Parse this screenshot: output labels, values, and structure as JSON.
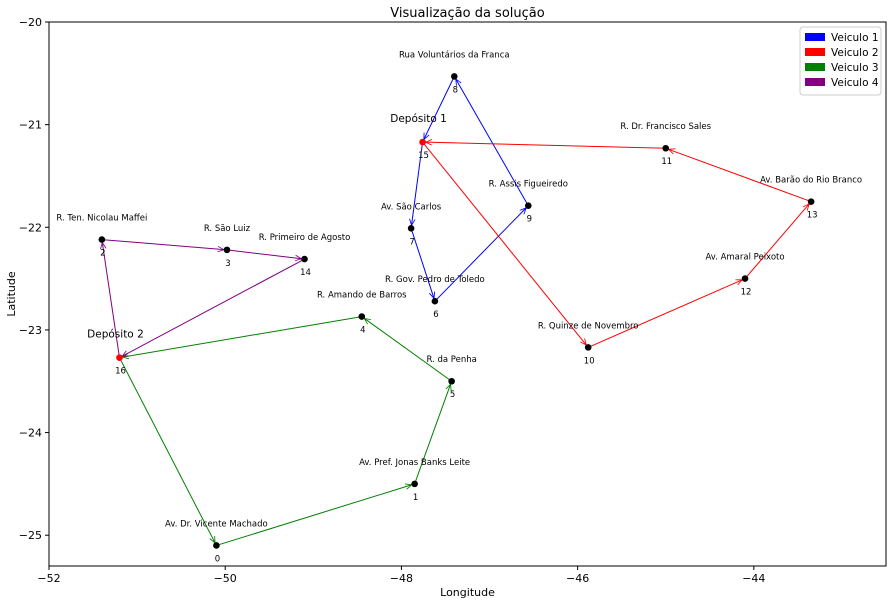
{
  "chart_data": {
    "type": "scatter",
    "title": "Visualização da solução",
    "xlabel": "Longitude",
    "ylabel": "Latitude",
    "xlim": [
      -52,
      -42.5
    ],
    "ylim": [
      -25.3,
      -20
    ],
    "xticks": [
      -52,
      -50,
      -48,
      -46,
      -44
    ],
    "yticks": [
      -20,
      -21,
      -22,
      -23,
      -24,
      -25
    ],
    "xtick_labels": [
      "−52",
      "−50",
      "−48",
      "−46",
      "−44"
    ],
    "ytick_labels": [
      "−20",
      "−21",
      "−22",
      "−23",
      "−24",
      "−25"
    ],
    "grid": false,
    "legend_position": "top-right",
    "nodes": [
      {
        "id": "0",
        "label": "Av. Dr. Vicente Machado",
        "x": -50.1,
        "y": -25.1,
        "depot": false
      },
      {
        "id": "1",
        "label": "Av. Pref. Jonas Banks Leite",
        "x": -47.85,
        "y": -24.5,
        "depot": false
      },
      {
        "id": "2",
        "label": "R. Ten. Nicolau Maffei",
        "x": -51.4,
        "y": -22.12,
        "depot": false
      },
      {
        "id": "3",
        "label": "R. São Luiz",
        "x": -49.98,
        "y": -22.22,
        "depot": false
      },
      {
        "id": "4",
        "label": "R. Amando de Barros",
        "x": -48.45,
        "y": -22.87,
        "depot": false
      },
      {
        "id": "5",
        "label": "R. da Penha",
        "x": -47.43,
        "y": -23.5,
        "depot": false
      },
      {
        "id": "6",
        "label": "R. Gov. Pedro de Toledo",
        "x": -47.62,
        "y": -22.72,
        "depot": false
      },
      {
        "id": "7",
        "label": "Av. São Carlos",
        "x": -47.89,
        "y": -22.01,
        "depot": false
      },
      {
        "id": "8",
        "label": "Rua Voluntários da Franca",
        "x": -47.4,
        "y": -20.53,
        "depot": false
      },
      {
        "id": "9",
        "label": "R. Assis Figueiredo",
        "x": -46.56,
        "y": -21.79,
        "depot": false
      },
      {
        "id": "10",
        "label": "R. Quinze de Novembro",
        "x": -45.88,
        "y": -23.17,
        "depot": false
      },
      {
        "id": "11",
        "label": "R. Dr. Francisco Sales",
        "x": -45.0,
        "y": -21.23,
        "depot": false
      },
      {
        "id": "12",
        "label": "Av. Amaral Peixoto",
        "x": -44.1,
        "y": -22.5,
        "depot": false
      },
      {
        "id": "13",
        "label": "Av. Barão do Rio Branco",
        "x": -43.35,
        "y": -21.75,
        "depot": false
      },
      {
        "id": "14",
        "label": "R. Primeiro de Agosto",
        "x": -49.1,
        "y": -22.31,
        "depot": false
      },
      {
        "id": "15",
        "label": "Depósito 1",
        "x": -47.76,
        "y": -21.17,
        "depot": true
      },
      {
        "id": "16",
        "label": "Depósito 2",
        "x": -51.2,
        "y": -23.27,
        "depot": true
      }
    ],
    "series": [
      {
        "name": "Veiculo 1",
        "color": "#0000ff",
        "route": [
          "15",
          "7",
          "6",
          "9",
          "8",
          "15"
        ]
      },
      {
        "name": "Veiculo 2",
        "color": "#ff0000",
        "route": [
          "15",
          "10",
          "12",
          "13",
          "11",
          "15"
        ]
      },
      {
        "name": "Veiculo 3",
        "color": "#008000",
        "route": [
          "16",
          "0",
          "1",
          "5",
          "4",
          "16"
        ]
      },
      {
        "name": "Veiculo 4",
        "color": "#800080",
        "route": [
          "16",
          "2",
          "3",
          "14",
          "16"
        ]
      }
    ]
  }
}
